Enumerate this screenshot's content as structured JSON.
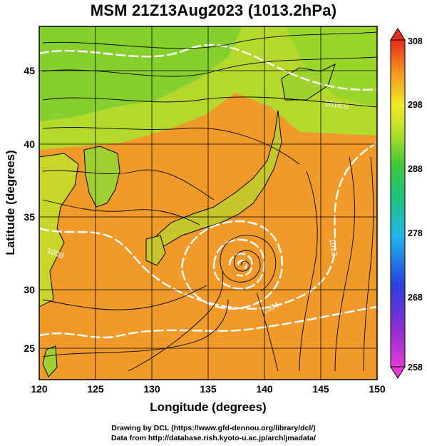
{
  "title": "MSM 21Z13Aug2023 (1013.2hPa)",
  "axes": {
    "xlabel": "Longitude (degrees)",
    "ylabel": "Latitude (degrees)",
    "xticks": [
      "120",
      "125",
      "130",
      "135",
      "140",
      "145",
      "150"
    ],
    "yticks": [
      "25",
      "30",
      "35",
      "40",
      "45"
    ],
    "xlim": [
      120,
      150
    ],
    "ylim": [
      22.4,
      47.6
    ]
  },
  "colorbar": {
    "ticks": [
      "308",
      "298",
      "288",
      "278",
      "268",
      "258"
    ],
    "range": [
      258,
      308
    ],
    "unit_hint": "temperature (K)"
  },
  "contour_labels": [
    "1016.0",
    "1008",
    "1004",
    "1012"
  ],
  "typhoon_center": {
    "lon": 137.2,
    "lat": 31.2
  },
  "credits": {
    "line1": "Drawing by DCL (https://www.gfd-dennou.org/library/dcl/)",
    "line2": "Data from http://database.rish.kyoto-u.ac.jp/arch/jmadata/"
  },
  "colors": {
    "ocean": "#f09a2c",
    "land_warm": "#e9b42a",
    "land_cool": "#7fcf2a",
    "isobar": "#ffffff",
    "streamline": "#000000"
  }
}
